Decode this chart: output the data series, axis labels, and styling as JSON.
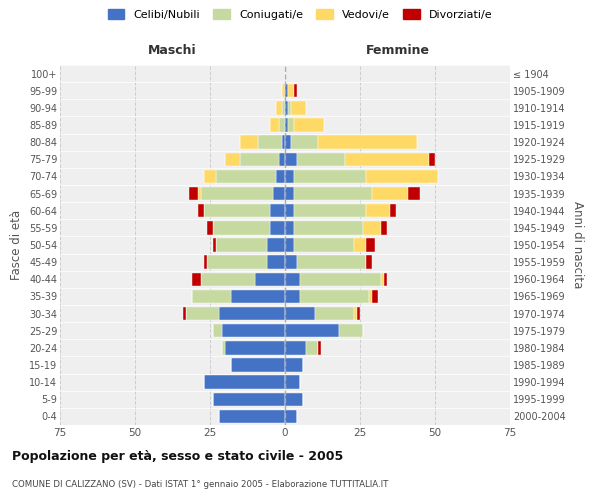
{
  "age_groups": [
    "0-4",
    "5-9",
    "10-14",
    "15-19",
    "20-24",
    "25-29",
    "30-34",
    "35-39",
    "40-44",
    "45-49",
    "50-54",
    "55-59",
    "60-64",
    "65-69",
    "70-74",
    "75-79",
    "80-84",
    "85-89",
    "90-94",
    "95-99",
    "100+"
  ],
  "birth_years": [
    "2000-2004",
    "1995-1999",
    "1990-1994",
    "1985-1989",
    "1980-1984",
    "1975-1979",
    "1970-1974",
    "1965-1969",
    "1960-1964",
    "1955-1959",
    "1950-1954",
    "1945-1949",
    "1940-1944",
    "1935-1939",
    "1930-1934",
    "1925-1929",
    "1920-1924",
    "1915-1919",
    "1910-1914",
    "1905-1909",
    "≤ 1904"
  ],
  "colors": {
    "celibi": "#4472C4",
    "coniugati": "#c5d9a0",
    "vedovi": "#ffd966",
    "divorziati": "#c00000"
  },
  "males": {
    "celibi": [
      22,
      24,
      27,
      18,
      20,
      21,
      22,
      18,
      10,
      6,
      6,
      5,
      5,
      4,
      3,
      2,
      1,
      0,
      0,
      0,
      0
    ],
    "coniugati": [
      0,
      0,
      0,
      0,
      1,
      3,
      11,
      13,
      18,
      20,
      17,
      19,
      22,
      24,
      20,
      13,
      8,
      2,
      1,
      0,
      0
    ],
    "vedovi": [
      0,
      0,
      0,
      0,
      0,
      0,
      0,
      0,
      0,
      0,
      0,
      0,
      0,
      1,
      4,
      5,
      6,
      3,
      2,
      1,
      0
    ],
    "divorziati": [
      0,
      0,
      0,
      0,
      0,
      0,
      1,
      0,
      3,
      1,
      1,
      2,
      2,
      3,
      0,
      0,
      0,
      0,
      0,
      0,
      0
    ]
  },
  "females": {
    "celibi": [
      4,
      6,
      5,
      6,
      7,
      18,
      10,
      5,
      5,
      4,
      3,
      3,
      3,
      3,
      3,
      4,
      2,
      1,
      1,
      1,
      0
    ],
    "coniugati": [
      0,
      0,
      0,
      0,
      4,
      8,
      13,
      23,
      27,
      23,
      20,
      23,
      24,
      26,
      24,
      16,
      9,
      2,
      1,
      0,
      0
    ],
    "vedovi": [
      0,
      0,
      0,
      0,
      0,
      0,
      1,
      1,
      1,
      0,
      4,
      6,
      8,
      12,
      24,
      28,
      33,
      10,
      5,
      2,
      0
    ],
    "divorziati": [
      0,
      0,
      0,
      0,
      1,
      0,
      1,
      2,
      1,
      2,
      3,
      2,
      2,
      4,
      0,
      2,
      0,
      0,
      0,
      1,
      0
    ]
  },
  "title": "Popolazione per età, sesso e stato civile - 2005",
  "subtitle": "COMUNE DI CALIZZANO (SV) - Dati ISTAT 1° gennaio 2005 - Elaborazione TUTTITALIA.IT",
  "xlabel_left": "Maschi",
  "xlabel_right": "Femmine",
  "ylabel_left": "Fasce di età",
  "ylabel_right": "Anni di nascita",
  "xlim": 75,
  "background_color": "#ffffff",
  "plot_bg": "#efefef",
  "legend_labels": [
    "Celibi/Nubili",
    "Coniugati/e",
    "Vedovi/e",
    "Divorziati/e"
  ]
}
